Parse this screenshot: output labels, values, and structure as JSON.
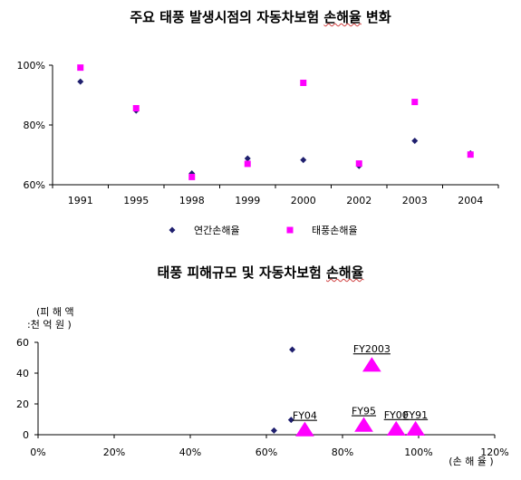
{
  "chart_data": [
    {
      "type": "scatter",
      "title": "주요 태풍 발생시점의 자동차보험 손해율 변화",
      "title_squiggle_word": "손해율",
      "categories": [
        "1991",
        "1995",
        "1998",
        "1999",
        "2000",
        "2002",
        "2003",
        "2004"
      ],
      "y_ticks": [
        "60%",
        "80%",
        "100%"
      ],
      "ylim": [
        60,
        100
      ],
      "legend_position": "bottom",
      "series": [
        {
          "name": "연간손해율",
          "marker": "diamond",
          "color": "#1f1f6e",
          "values": [
            94.5,
            84.8,
            63.8,
            68.8,
            68.3,
            66.3,
            74.7,
            70.5
          ]
        },
        {
          "name": "태풍손해율",
          "marker": "square",
          "color": "#ff00ff",
          "values": [
            99.2,
            85.6,
            62.6,
            67.0,
            94.1,
            67.1,
            87.7,
            70.1
          ]
        }
      ]
    },
    {
      "type": "scatter",
      "title": "태풍 피해규모 및 자동차보험 손해율",
      "title_squiggle_word": "손해율",
      "y_axis_label_line1": "(피 해 액",
      "y_axis_label_line2": ":천 억 원 )",
      "x_axis_label": "(손 해 율 )",
      "x_ticks": [
        "0%",
        "20%",
        "40%",
        "60%",
        "80%",
        "100%",
        "120%"
      ],
      "y_ticks": [
        "0",
        "20",
        "40",
        "60"
      ],
      "xlim": [
        0,
        120
      ],
      "ylim": [
        0,
        60
      ],
      "series": [
        {
          "name": "",
          "marker": "diamond",
          "color": "#1f1f6e",
          "points": [
            {
              "x": 62,
              "y": 2.7
            },
            {
              "x": 66.5,
              "y": 9.6
            },
            {
              "x": 66.8,
              "y": 55.3
            }
          ]
        },
        {
          "name": "",
          "marker": "triangle",
          "color": "#ff00ff",
          "points": [
            {
              "x": 87.7,
              "y": 44,
              "label": "FY2003"
            },
            {
              "x": 70.1,
              "y": 2,
              "label": "FY04"
            },
            {
              "x": 85.6,
              "y": 5,
              "label": "FY95"
            },
            {
              "x": 94.1,
              "y": 2.5,
              "label": "FY00"
            },
            {
              "x": 99.2,
              "y": 2.5,
              "label": "FY91"
            }
          ]
        }
      ]
    }
  ]
}
